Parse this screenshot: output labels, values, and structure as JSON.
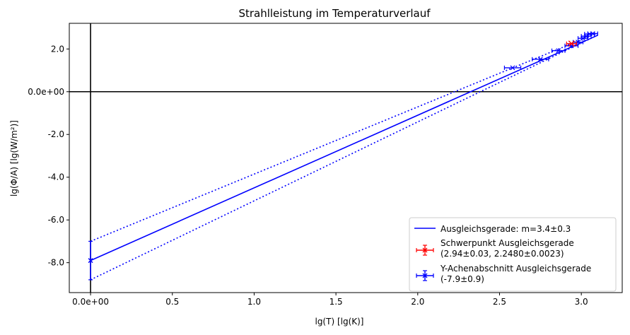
{
  "chart_data": {
    "type": "line",
    "title": "Strahlleistung im Temperaturverlauf",
    "xlabel": "lg(T) [lg(K)]",
    "ylabel": "lg(Φ/A) [lg(W/m²)]",
    "xlim": [
      -0.13,
      3.25
    ],
    "ylim": [
      -9.4,
      3.2
    ],
    "x_ticks": [
      {
        "value": 0,
        "label": "0.0e+00"
      },
      {
        "value": 0.5,
        "label": "0.5"
      },
      {
        "value": 1.0,
        "label": "1.0"
      },
      {
        "value": 1.5,
        "label": "1.5"
      },
      {
        "value": 2.0,
        "label": "2.0"
      },
      {
        "value": 2.5,
        "label": "2.5"
      },
      {
        "value": 3.0,
        "label": "3.0"
      }
    ],
    "y_ticks": [
      {
        "value": 2,
        "label": "2.0"
      },
      {
        "value": 0,
        "label": "0.0e+00"
      },
      {
        "value": -2,
        "label": "-2.0"
      },
      {
        "value": -4,
        "label": "-4.0"
      },
      {
        "value": -6,
        "label": "-6.0"
      },
      {
        "value": -8,
        "label": "-8.0"
      }
    ],
    "grid": false,
    "legend_position": "bottom-right",
    "colors": {
      "blue": "#0000ff",
      "red": "#ff0000",
      "axis": "#000000"
    },
    "fit_line": {
      "name": "Ausgleichsgerade: m=3.4±0.3",
      "slope": 3.4,
      "intercept": -7.9,
      "x": [
        0,
        3.1
      ]
    },
    "fit_upper": {
      "x": [
        0,
        3.1
      ],
      "y": [
        -7.0,
        2.75
      ]
    },
    "fit_lower": {
      "x": [
        0,
        3.1
      ],
      "y": [
        -8.8,
        2.65
      ]
    },
    "data_points": [
      {
        "x": 2.58,
        "y": 1.12,
        "xerr": 0.05
      },
      {
        "x": 2.75,
        "y": 1.52,
        "xerr": 0.05
      },
      {
        "x": 2.86,
        "y": 1.92,
        "xerr": 0.04
      },
      {
        "x": 2.94,
        "y": 2.15,
        "xerr": 0.04
      },
      {
        "x": 2.98,
        "y": 2.32,
        "xerr": 0.03
      },
      {
        "x": 3.01,
        "y": 2.5,
        "xerr": 0.03
      },
      {
        "x": 3.03,
        "y": 2.6,
        "xerr": 0.03
      },
      {
        "x": 3.05,
        "y": 2.7,
        "xerr": 0.03
      },
      {
        "x": 3.07,
        "y": 2.72,
        "xerr": 0.03
      }
    ],
    "centroid": {
      "name": "Schwerpunkt Ausgleichsgerade",
      "detail": "(2.94±0.03, 2.2480±0.0023)",
      "x": 2.94,
      "y": 2.248,
      "xerr": 0.03,
      "yerr": 0.0023
    },
    "intercept_point": {
      "name": "Y-Achenabschnitt Ausgleichsgerade",
      "detail": "(-7.9±0.9)",
      "x": 0,
      "y": -7.9,
      "yerr": 0.9
    }
  }
}
